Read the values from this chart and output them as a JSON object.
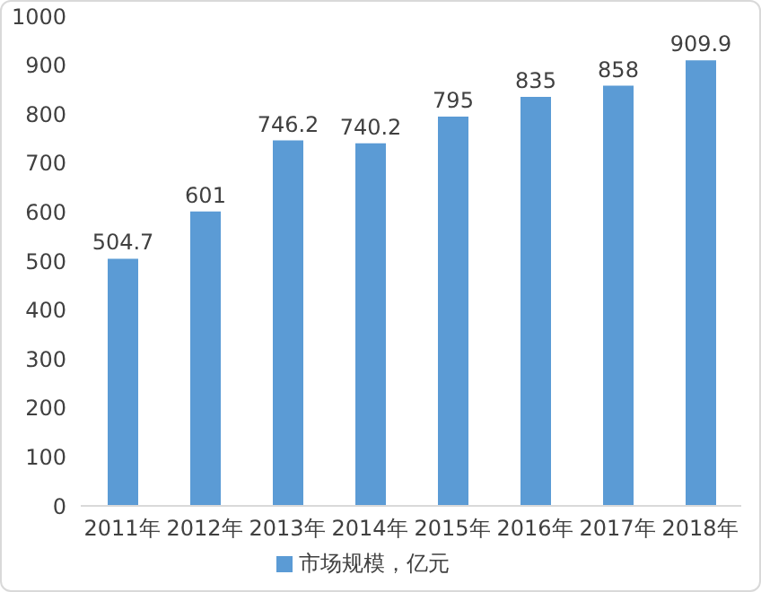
{
  "chart_data": {
    "type": "bar",
    "categories": [
      "2011年",
      "2012年",
      "2013年",
      "2014年",
      "2015年",
      "2016年",
      "2017年",
      "2018年"
    ],
    "series": [
      {
        "name": "市场规模，亿元",
        "color": "#5b9bd5",
        "values": [
          504.7,
          601,
          746.2,
          740.2,
          795,
          835,
          858,
          909.9
        ]
      }
    ],
    "ylim": [
      0,
      1000
    ],
    "yticks": [
      0,
      100,
      200,
      300,
      400,
      500,
      600,
      700,
      800,
      900,
      1000
    ],
    "grid": false,
    "legend": "bottom",
    "data_labels": true
  }
}
